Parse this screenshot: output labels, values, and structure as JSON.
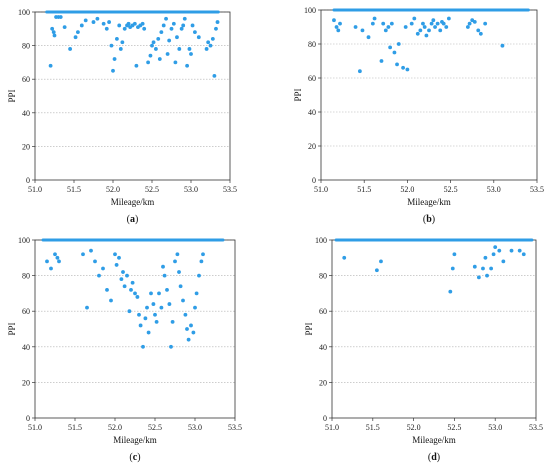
{
  "colors": {
    "marker": "#2f9de6",
    "grid": "#b0b0b0",
    "axis": "#333333"
  },
  "chart_data": [
    {
      "panel": "(a)",
      "panel_letter": "a",
      "type": "scatter",
      "xlabel": "Mileage/km",
      "ylabel": "PPI",
      "xlim": [
        51.0,
        53.5
      ],
      "ylim": [
        0,
        100
      ],
      "xticks": [
        "51.0",
        "51.5",
        "52.0",
        "52.5",
        "53.0",
        "53.5"
      ],
      "yticks": [
        "0",
        "20",
        "40",
        "60",
        "80",
        "100"
      ],
      "grid": true,
      "baseline": {
        "y": 100,
        "x_from": 51.15,
        "x_to": 53.35
      },
      "points": [
        [
          51.2,
          68
        ],
        [
          51.22,
          90
        ],
        [
          51.24,
          88
        ],
        [
          51.25,
          86
        ],
        [
          51.27,
          97
        ],
        [
          51.3,
          97
        ],
        [
          51.33,
          97
        ],
        [
          51.38,
          91
        ],
        [
          51.45,
          78
        ],
        [
          51.52,
          85
        ],
        [
          51.55,
          88
        ],
        [
          51.6,
          92
        ],
        [
          51.65,
          95
        ],
        [
          51.75,
          94
        ],
        [
          51.8,
          96
        ],
        [
          51.88,
          93
        ],
        [
          51.92,
          90
        ],
        [
          51.95,
          94
        ],
        [
          51.98,
          80
        ],
        [
          52.0,
          65
        ],
        [
          52.02,
          72
        ],
        [
          52.05,
          84
        ],
        [
          52.08,
          92
        ],
        [
          52.1,
          78
        ],
        [
          52.12,
          82
        ],
        [
          52.15,
          90
        ],
        [
          52.18,
          92
        ],
        [
          52.2,
          93
        ],
        [
          52.22,
          91
        ],
        [
          52.25,
          92
        ],
        [
          52.28,
          93
        ],
        [
          52.3,
          68
        ],
        [
          52.32,
          91
        ],
        [
          52.35,
          92
        ],
        [
          52.38,
          93
        ],
        [
          52.4,
          90
        ],
        [
          52.45,
          70
        ],
        [
          52.48,
          74
        ],
        [
          52.5,
          80
        ],
        [
          52.52,
          82
        ],
        [
          52.55,
          78
        ],
        [
          52.58,
          84
        ],
        [
          52.6,
          72
        ],
        [
          52.62,
          88
        ],
        [
          52.65,
          92
        ],
        [
          52.68,
          96
        ],
        [
          52.7,
          75
        ],
        [
          52.72,
          83
        ],
        [
          52.75,
          90
        ],
        [
          52.78,
          93
        ],
        [
          52.8,
          70
        ],
        [
          52.82,
          85
        ],
        [
          52.85,
          78
        ],
        [
          52.88,
          90
        ],
        [
          52.9,
          92
        ],
        [
          52.92,
          96
        ],
        [
          52.95,
          68
        ],
        [
          52.98,
          78
        ],
        [
          53.0,
          75
        ],
        [
          53.02,
          92
        ],
        [
          53.05,
          88
        ],
        [
          53.1,
          85
        ],
        [
          53.2,
          78
        ],
        [
          53.22,
          82
        ],
        [
          53.25,
          80
        ],
        [
          53.28,
          84
        ],
        [
          53.3,
          62
        ],
        [
          53.32,
          90
        ],
        [
          53.34,
          94
        ]
      ]
    },
    {
      "panel": "(b)",
      "panel_letter": "b",
      "type": "scatter",
      "xlabel": "Mileage/km",
      "ylabel": "PPI",
      "xlim": [
        51.0,
        53.5
      ],
      "ylim": [
        0,
        100
      ],
      "xticks": [
        "51.0",
        "51.5",
        "52.0",
        "52.5",
        "53.0",
        "53.5"
      ],
      "yticks": [
        "0",
        "20",
        "40",
        "60",
        "80",
        "100"
      ],
      "grid": true,
      "baseline": {
        "y": 100,
        "x_from": 51.15,
        "x_to": 53.4
      },
      "points": [
        [
          51.15,
          94
        ],
        [
          51.18,
          90
        ],
        [
          51.2,
          88
        ],
        [
          51.22,
          92
        ],
        [
          51.4,
          90
        ],
        [
          51.45,
          64
        ],
        [
          51.48,
          88
        ],
        [
          51.55,
          84
        ],
        [
          51.6,
          92
        ],
        [
          51.62,
          95
        ],
        [
          51.7,
          70
        ],
        [
          51.72,
          92
        ],
        [
          51.75,
          88
        ],
        [
          51.78,
          90
        ],
        [
          51.8,
          78
        ],
        [
          51.82,
          92
        ],
        [
          51.85,
          75
        ],
        [
          51.88,
          68
        ],
        [
          51.9,
          80
        ],
        [
          51.95,
          66
        ],
        [
          51.98,
          90
        ],
        [
          52.0,
          65
        ],
        [
          52.05,
          92
        ],
        [
          52.08,
          95
        ],
        [
          52.12,
          86
        ],
        [
          52.15,
          88
        ],
        [
          52.18,
          92
        ],
        [
          52.2,
          90
        ],
        [
          52.22,
          85
        ],
        [
          52.25,
          88
        ],
        [
          52.28,
          92
        ],
        [
          52.3,
          94
        ],
        [
          52.32,
          90
        ],
        [
          52.35,
          92
        ],
        [
          52.38,
          88
        ],
        [
          52.4,
          93
        ],
        [
          52.42,
          92
        ],
        [
          52.45,
          90
        ],
        [
          52.48,
          95
        ],
        [
          52.7,
          90
        ],
        [
          52.72,
          92
        ],
        [
          52.75,
          94
        ],
        [
          52.78,
          93
        ],
        [
          52.82,
          88
        ],
        [
          52.85,
          86
        ],
        [
          52.9,
          92
        ],
        [
          53.1,
          79
        ]
      ]
    },
    {
      "panel": "(c)",
      "panel_letter": "c",
      "type": "scatter",
      "xlabel": "Mileage/km",
      "ylabel": "PPI",
      "xlim": [
        51.0,
        53.5
      ],
      "ylim": [
        0,
        100
      ],
      "xticks": [
        "51.0",
        "51.5",
        "52.0",
        "52.5",
        "53.0",
        "53.5"
      ],
      "yticks": [
        "0",
        "20",
        "40",
        "60",
        "80",
        "100"
      ],
      "grid": true,
      "baseline": {
        "y": 100,
        "x_from": 51.1,
        "x_to": 53.35
      },
      "points": [
        [
          51.15,
          88
        ],
        [
          51.2,
          84
        ],
        [
          51.25,
          92
        ],
        [
          51.28,
          90
        ],
        [
          51.3,
          88
        ],
        [
          51.6,
          92
        ],
        [
          51.65,
          62
        ],
        [
          51.7,
          94
        ],
        [
          51.75,
          88
        ],
        [
          51.8,
          80
        ],
        [
          51.85,
          84
        ],
        [
          51.9,
          72
        ],
        [
          51.95,
          66
        ],
        [
          52.0,
          92
        ],
        [
          52.02,
          86
        ],
        [
          52.05,
          90
        ],
        [
          52.08,
          78
        ],
        [
          52.1,
          82
        ],
        [
          52.12,
          74
        ],
        [
          52.15,
          80
        ],
        [
          52.18,
          60
        ],
        [
          52.2,
          72
        ],
        [
          52.22,
          76
        ],
        [
          52.25,
          70
        ],
        [
          52.28,
          68
        ],
        [
          52.3,
          58
        ],
        [
          52.32,
          52
        ],
        [
          52.35,
          40
        ],
        [
          52.38,
          56
        ],
        [
          52.4,
          62
        ],
        [
          52.42,
          48
        ],
        [
          52.45,
          70
        ],
        [
          52.48,
          64
        ],
        [
          52.5,
          58
        ],
        [
          52.52,
          54
        ],
        [
          52.55,
          70
        ],
        [
          52.58,
          62
        ],
        [
          52.6,
          85
        ],
        [
          52.62,
          80
        ],
        [
          52.65,
          72
        ],
        [
          52.68,
          64
        ],
        [
          52.7,
          40
        ],
        [
          52.72,
          54
        ],
        [
          52.75,
          88
        ],
        [
          52.78,
          92
        ],
        [
          52.8,
          82
        ],
        [
          52.82,
          74
        ],
        [
          52.85,
          66
        ],
        [
          52.88,
          58
        ],
        [
          52.9,
          50
        ],
        [
          52.92,
          44
        ],
        [
          52.95,
          52
        ],
        [
          52.98,
          48
        ],
        [
          53.0,
          62
        ],
        [
          53.02,
          70
        ],
        [
          53.05,
          80
        ],
        [
          53.08,
          88
        ],
        [
          53.1,
          92
        ]
      ]
    },
    {
      "panel": "(d)",
      "panel_letter": "d",
      "type": "scatter",
      "xlabel": "Mileage/km",
      "ylabel": "PPI",
      "xlim": [
        51.0,
        53.5
      ],
      "ylim": [
        0,
        100
      ],
      "xticks": [
        "51.0",
        "51.5",
        "52.0",
        "52.5",
        "53.0",
        "53.5"
      ],
      "yticks": [
        "0",
        "20",
        "40",
        "60",
        "80",
        "100"
      ],
      "grid": true,
      "baseline": {
        "y": 100,
        "x_from": 51.05,
        "x_to": 53.45
      },
      "points": [
        [
          51.15,
          90
        ],
        [
          51.55,
          83
        ],
        [
          51.6,
          88
        ],
        [
          52.45,
          71
        ],
        [
          52.48,
          84
        ],
        [
          52.5,
          92
        ],
        [
          52.75,
          85
        ],
        [
          52.8,
          79
        ],
        [
          52.85,
          84
        ],
        [
          52.88,
          90
        ],
        [
          52.9,
          80
        ],
        [
          52.95,
          84
        ],
        [
          52.98,
          92
        ],
        [
          53.0,
          96
        ],
        [
          53.05,
          94
        ],
        [
          53.1,
          88
        ],
        [
          53.2,
          94
        ],
        [
          53.3,
          94
        ],
        [
          53.35,
          92
        ]
      ]
    }
  ]
}
